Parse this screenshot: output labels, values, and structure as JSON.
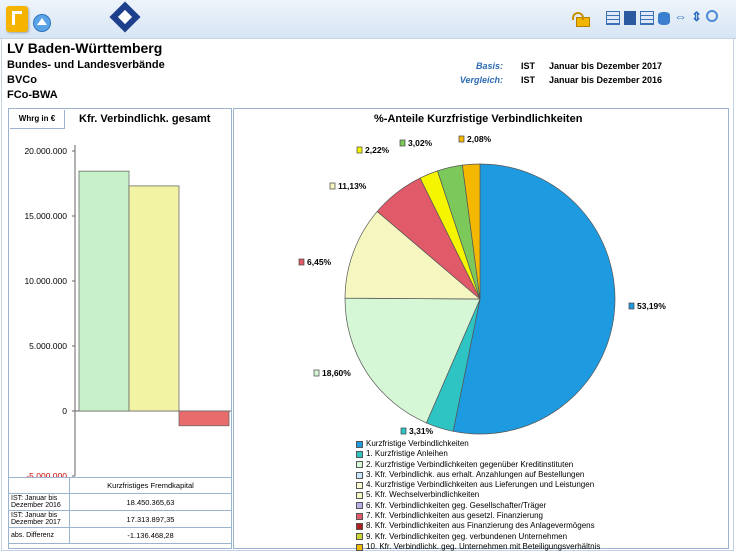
{
  "toolbar": {
    "icons": [
      "app-icon",
      "up-arrow-icon",
      "logo-icon",
      "lock-icon",
      "table-icon",
      "export-icon",
      "filter-icon",
      "database-icon",
      "swap-icon",
      "sort-icon",
      "zoom-icon"
    ]
  },
  "header": {
    "title": "LV Baden-Württemberg",
    "line1": "Bundes- und Landesverbände",
    "line2": "BVCo",
    "line3": "FCo-BWA"
  },
  "meta": {
    "basis_label": "Basis:",
    "basis_type": "IST",
    "basis_period": "Januar bis Dezember 2017",
    "vergleich_label": "Vergleich:",
    "vergleich_type": "IST",
    "vergleich_period": "Januar bis Dezember 2016"
  },
  "bar_panel": {
    "unit": "Whrg in €",
    "title": "Kfr. Verbindlichk. gesamt",
    "table_header": "Kurzfristiges Fremdkapital",
    "rows": [
      {
        "label": "IST: Januar bis Dezember 2016",
        "value": "18.450.365,63"
      },
      {
        "label": "IST: Januar bis Dezember 2017",
        "value": "17.313.897,35"
      },
      {
        "label": "abs. Differenz",
        "value": "-1.136.468,28"
      }
    ]
  },
  "pie_panel": {
    "title": "%-Anteile Kurzfristige Verbindlichkeiten"
  },
  "chart_data": [
    {
      "type": "bar",
      "title": "Kfr. Verbindlichk. gesamt",
      "ylabel": "Whrg in €",
      "categories": [
        "IST: Januar bis Dezember 2016",
        "IST: Januar bis Dezember 2017",
        "abs. Differenz"
      ],
      "values": [
        18450365.63,
        17313897.35,
        -1136468.28
      ],
      "colors": [
        "#c7f2c9",
        "#f3f3a4",
        "#e96c6c"
      ],
      "ylim": [
        -5000000,
        20000000
      ],
      "yticks": [
        "20.000.000",
        "15.000.000",
        "10.000.000",
        "5.000.000",
        "0",
        "-5.000.000"
      ],
      "ytick_values": [
        20000000,
        15000000,
        10000000,
        5000000,
        0,
        -5000000
      ]
    },
    {
      "type": "pie",
      "title": "%-Anteile Kurzfristige Verbindlichkeiten",
      "slices": [
        {
          "label": "Kurzfristige Verbindlichkeiten",
          "value": 53.19,
          "text": "53,19%",
          "color": "#1e9be0"
        },
        {
          "label": "1. Kurzfristige Anleihen",
          "value": 3.31,
          "text": "3,31%",
          "color": "#2ec4c4"
        },
        {
          "label": "2. Kurzfristige Verbindlichkeiten gegenüber Kreditinstituten",
          "value": 18.6,
          "text": "18,60%",
          "color": "#d6f7d6"
        },
        {
          "label": "3. Kfr. Verbindlichk. aus erhalt. Anzahlungen auf Bestellungen",
          "value": 0,
          "text": "",
          "color": "#c8e6ff"
        },
        {
          "label": "4. Kurzfristige Verbindlichkeiten aus Lieferungen und Leistungen",
          "value": 0,
          "text": "",
          "color": "#fafad2"
        },
        {
          "label": "5. Kfr. Wechselverbindlichkeiten",
          "value": 11.13,
          "text": "11,13%",
          "color": "#f6f6c0"
        },
        {
          "label": "6. Kfr. Verbindlichkeiten geg. Gesellschafter/Träger",
          "value": 0,
          "text": "",
          "color": "#b9b0e8"
        },
        {
          "label": "7. Kfr. Verbindlichkeiten aus gesetzl. Finanzierung",
          "value": 6.45,
          "text": "6,45%",
          "color": "#e05a6a"
        },
        {
          "label": "8. Kfr. Verbindlichkeiten aus Finanzierung des Anlagevermögens",
          "value": 0,
          "text": "",
          "color": "#b01e1e"
        },
        {
          "label": "9.  Kfr. Verbindlichkeiten geg. verbundenen Unternehmen",
          "value": 2.22,
          "text": "2,22%",
          "color": "#f5f500"
        },
        {
          "label": "10. Kfr. Verbindlichk. geg. Unternehmen mit Beteiligungsverhältnis",
          "value": 3.02,
          "text": "3,02%",
          "color": "#7cc85a"
        },
        {
          "label": "",
          "value": 2.08,
          "text": "2,08%",
          "color": "#f5b800"
        }
      ],
      "legend": [
        {
          "label": "Kurzfristige Verbindlichkeiten",
          "color": "#1e9be0"
        },
        {
          "label": "1. Kurzfristige Anleihen",
          "color": "#2ec4c4"
        },
        {
          "label": "2. Kurzfristige Verbindlichkeiten gegenüber Kreditinstituten",
          "color": "#d6f7d6"
        },
        {
          "label": "3. Kfr. Verbindlichk. aus erhalt. Anzahlungen auf Bestellungen",
          "color": "#c8e6ff"
        },
        {
          "label": "4. Kurzfristige Verbindlichkeiten aus Lieferungen und Leistungen",
          "color": "#fafad2"
        },
        {
          "label": "5. Kfr. Wechselverbindlichkeiten",
          "color": "#f6f6c0"
        },
        {
          "label": "6. Kfr. Verbindlichkeiten geg. Gesellschafter/Träger",
          "color": "#b9b0e8"
        },
        {
          "label": "7. Kfr. Verbindlichkeiten aus gesetzl. Finanzierung",
          "color": "#e05a6a"
        },
        {
          "label": "8. Kfr. Verbindlichkeiten aus Finanzierung des Anlagevermögens",
          "color": "#b01e1e"
        },
        {
          "label": "9.  Kfr. Verbindlichkeiten geg. verbundenen Unternehmen",
          "color": "#c8d830"
        },
        {
          "label": "10. Kfr. Verbindlichk. geg. Unternehmen mit Beteiligungsverhältnis",
          "color": "#f5b800"
        }
      ]
    }
  ]
}
